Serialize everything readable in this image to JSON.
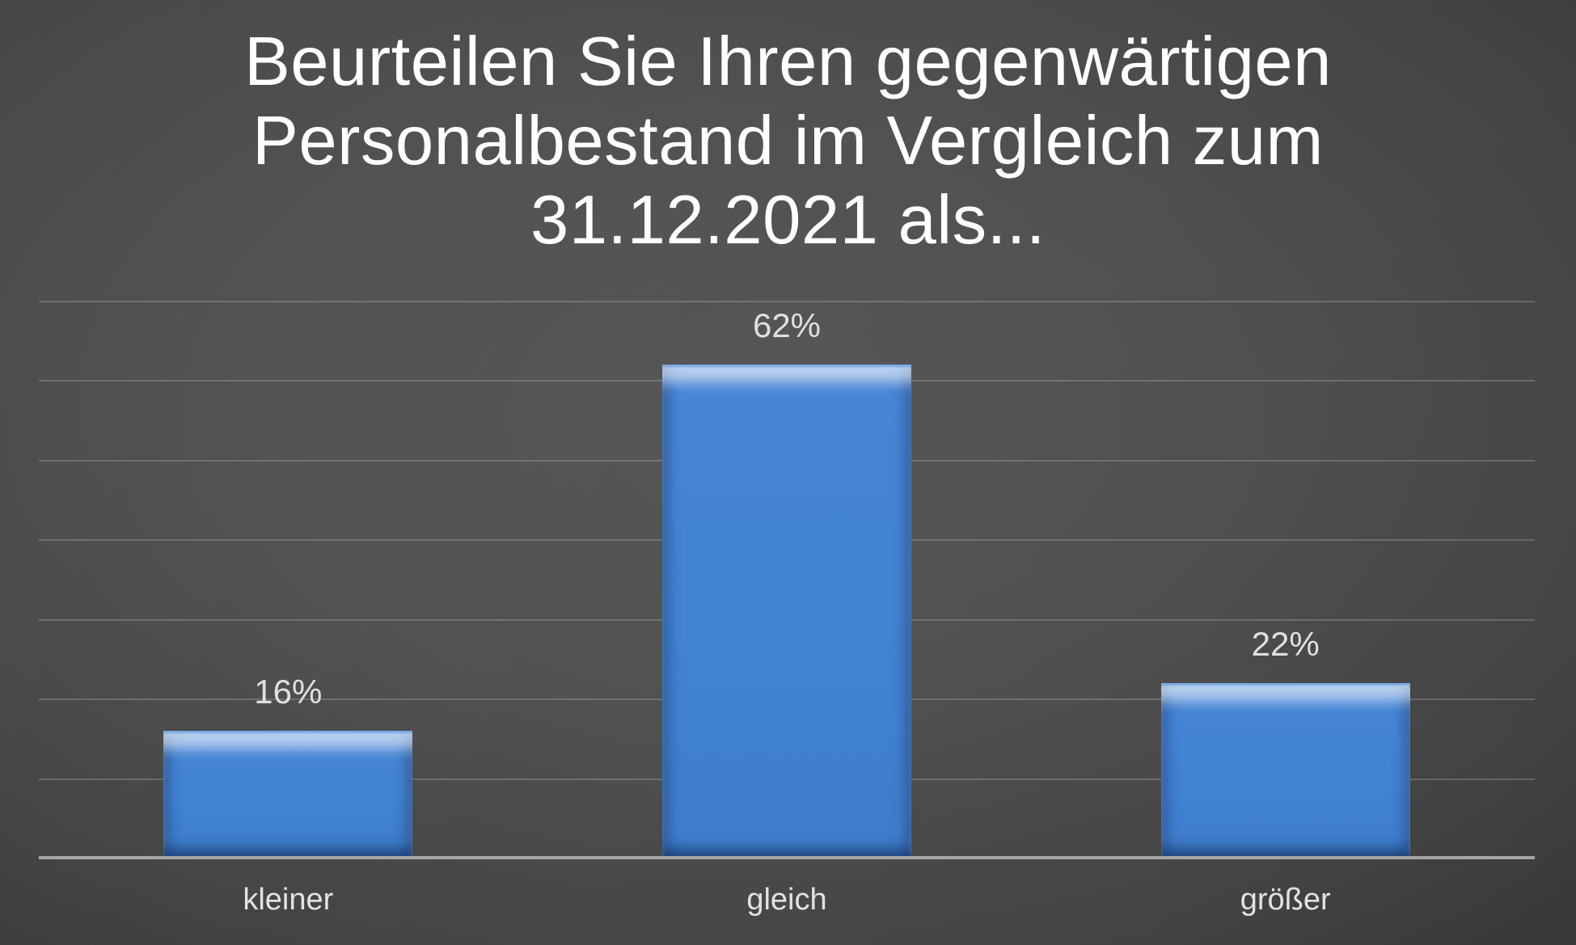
{
  "title": {
    "lines": [
      "Beurteilen Sie Ihren gegenwärtigen",
      "Personalbestand im Vergleich zum",
      "31.12.2021 als..."
    ]
  },
  "chart_data": {
    "type": "bar",
    "title": "Beurteilen Sie Ihren gegenwärtigen Personalbestand im Vergleich zum 31.12.2021 als...",
    "categories": [
      "kleiner",
      "gleich",
      "größer"
    ],
    "values": [
      16,
      62,
      22
    ],
    "data_labels": [
      "16%",
      "62%",
      "22%"
    ],
    "xlabel": "",
    "ylabel": "",
    "ylim": [
      0,
      70
    ],
    "gridline_interval": 10,
    "grid": true,
    "legend": false,
    "y_tick_labels_visible": false,
    "colors": {
      "bar": "#4283d4",
      "bar_highlight": "#cfe7fb",
      "gridline": "rgba(255,255,255,0.18)",
      "axis_line": "#a6a6a6",
      "title_text": "#ffffff",
      "label_text": "#e0e0e0",
      "background_center": "#565656",
      "background_edge": "#242424"
    }
  }
}
